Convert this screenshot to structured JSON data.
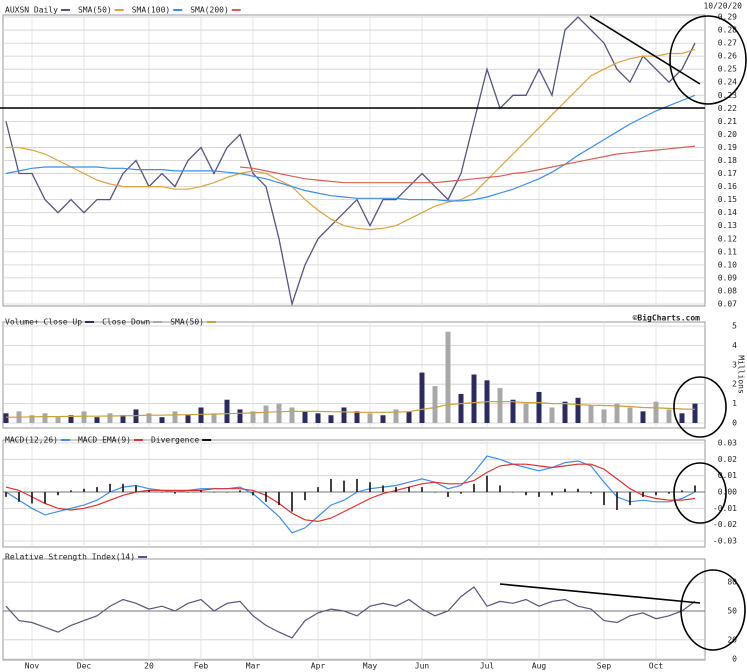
{
  "chart_data": [
    {
      "type": "line",
      "date": "10/20/20",
      "ylim": [
        0.07,
        0.29
      ],
      "grid": true,
      "yticks": [
        0.07,
        0.08,
        0.09,
        {
          "value": 0.1,
          "label": "0.10"
        },
        0.11,
        0.12,
        0.13,
        0.14,
        0.15,
        0.16,
        0.17,
        0.18,
        0.19,
        {
          "value": 0.2,
          "label": "0.20"
        },
        0.21,
        0.22,
        0.23,
        0.24,
        0.25,
        0.26,
        0.27,
        0.28,
        0.29
      ],
      "series": [
        {
          "name": "AUXSN Daily",
          "color": "#55557f",
          "style": "line",
          "values": [
            0.21,
            0.17,
            0.17,
            0.15,
            0.14,
            0.15,
            0.14,
            0.15,
            0.15,
            0.17,
            0.18,
            0.16,
            0.17,
            0.16,
            0.18,
            0.19,
            0.17,
            0.19,
            0.2,
            0.17,
            0.16,
            0.12,
            0.07,
            0.1,
            0.12,
            0.13,
            0.14,
            0.15,
            0.13,
            0.15,
            0.15,
            0.16,
            0.17,
            0.16,
            0.15,
            0.17,
            0.21,
            0.25,
            0.22,
            0.23,
            0.23,
            0.25,
            0.23,
            0.28,
            0.29,
            0.28,
            0.27,
            0.25,
            0.24,
            0.26,
            0.25,
            0.24,
            0.25,
            0.27
          ]
        },
        {
          "name": "SMA(50)",
          "color": "#d9a441",
          "style": "line",
          "values": [
            0.19,
            0.19,
            0.188,
            0.185,
            0.18,
            0.175,
            0.17,
            0.165,
            0.162,
            0.16,
            0.16,
            0.16,
            0.16,
            0.158,
            0.158,
            0.16,
            0.163,
            0.167,
            0.17,
            0.172,
            0.17,
            0.165,
            0.16,
            0.15,
            0.142,
            0.135,
            0.13,
            0.128,
            0.127,
            0.128,
            0.13,
            0.135,
            0.14,
            0.145,
            0.148,
            0.15,
            0.155,
            0.165,
            0.175,
            0.185,
            0.195,
            0.205,
            0.215,
            0.225,
            0.235,
            0.245,
            0.25,
            0.255,
            0.258,
            0.26,
            0.26,
            0.262,
            0.262,
            0.265
          ]
        },
        {
          "name": "SMA(100)",
          "color": "#3d8ee8",
          "style": "line",
          "values": [
            0.17,
            0.172,
            0.174,
            0.175,
            0.175,
            0.175,
            0.175,
            0.175,
            0.174,
            0.174,
            0.173,
            0.173,
            0.173,
            0.172,
            0.172,
            0.172,
            0.172,
            0.171,
            0.17,
            0.168,
            0.166,
            0.163,
            0.16,
            0.157,
            0.155,
            0.153,
            0.152,
            0.151,
            0.151,
            0.151,
            0.151,
            0.15,
            0.15,
            0.15,
            0.149,
            0.149,
            0.15,
            0.152,
            0.155,
            0.158,
            0.162,
            0.166,
            0.171,
            0.177,
            0.184,
            0.19,
            0.196,
            0.202,
            0.208,
            0.213,
            0.218,
            0.222,
            0.226,
            0.23
          ]
        },
        {
          "name": "SMA(200)",
          "color": "#d8605a",
          "style": "line",
          "values": [
            null,
            null,
            null,
            null,
            null,
            null,
            null,
            null,
            null,
            null,
            null,
            null,
            null,
            null,
            null,
            null,
            null,
            null,
            0.175,
            0.174,
            0.172,
            0.17,
            0.168,
            0.166,
            0.165,
            0.164,
            0.163,
            0.163,
            0.163,
            0.163,
            0.163,
            0.163,
            0.163,
            0.163,
            0.164,
            0.165,
            0.166,
            0.167,
            0.168,
            0.17,
            0.171,
            0.173,
            0.175,
            0.177,
            0.179,
            0.181,
            0.183,
            0.185,
            0.186,
            0.187,
            0.188,
            0.189,
            0.19,
            0.191
          ]
        }
      ]
    },
    {
      "type": "bar",
      "credit": "©BigCharts.com",
      "y_label": "Millions",
      "ylim": [
        0,
        5
      ],
      "grid": true,
      "yticks": [
        0,
        1,
        2,
        3,
        4,
        5
      ],
      "series": [
        {
          "name": "Volume+ Close Up",
          "color": "#2b2b5e",
          "style": "bar",
          "values": [
            0.5,
            null,
            null,
            null,
            null,
            0.4,
            null,
            0.3,
            null,
            0.4,
            0.7,
            null,
            0.3,
            null,
            0.4,
            0.8,
            null,
            1.2,
            0.7,
            null,
            null,
            null,
            null,
            0.6,
            0.5,
            0.4,
            0.8,
            0.6,
            null,
            0.4,
            null,
            0.6,
            2.6,
            null,
            null,
            1.5,
            2.5,
            2.2,
            null,
            1.2,
            null,
            1.6,
            null,
            1.1,
            1.3,
            null,
            null,
            null,
            null,
            0.6,
            null,
            null,
            0.5,
            1.0
          ]
        },
        {
          "name": "Close Down",
          "color": "#a8a8a8",
          "style": "bar",
          "values": [
            null,
            0.6,
            0.4,
            0.5,
            0.3,
            null,
            0.6,
            null,
            0.5,
            null,
            null,
            0.5,
            null,
            0.6,
            null,
            null,
            0.5,
            null,
            null,
            0.6,
            0.9,
            1.0,
            0.8,
            null,
            null,
            null,
            null,
            null,
            0.5,
            null,
            0.7,
            null,
            null,
            1.9,
            4.7,
            null,
            null,
            null,
            1.8,
            null,
            1.0,
            null,
            0.8,
            null,
            null,
            0.9,
            0.7,
            1.0,
            0.8,
            null,
            1.1,
            0.7,
            null,
            null
          ]
        },
        {
          "name": "SMA(50)",
          "color": "#c9a13d",
          "style": "line",
          "values": [
            0.3,
            0.3,
            0.32,
            0.33,
            0.33,
            0.34,
            0.35,
            0.35,
            0.36,
            0.37,
            0.38,
            0.4,
            0.4,
            0.42,
            0.43,
            0.45,
            0.46,
            0.48,
            0.5,
            0.52,
            0.55,
            0.58,
            0.6,
            0.6,
            0.6,
            0.58,
            0.57,
            0.55,
            0.55,
            0.55,
            0.56,
            0.58,
            0.7,
            0.8,
            0.95,
            1.0,
            1.05,
            1.1,
            1.1,
            1.1,
            1.05,
            1.05,
            1.0,
            1.0,
            0.95,
            0.92,
            0.9,
            0.88,
            0.85,
            0.8,
            0.78,
            0.75,
            0.72,
            0.7
          ]
        }
      ]
    },
    {
      "type": "line",
      "ylim": [
        -0.03,
        0.03
      ],
      "grid": true,
      "yticks": [
        -0.03,
        -0.02,
        -0.01,
        {
          "value": 0,
          "label": "0.00"
        },
        0.01,
        0.02,
        0.03
      ],
      "series": [
        {
          "name": "MACD(12,26)",
          "color": "#3d8ee8",
          "style": "line",
          "values": [
            0.0,
            -0.005,
            -0.01,
            -0.014,
            -0.012,
            -0.01,
            -0.008,
            -0.005,
            0.0,
            0.003,
            0.004,
            0.002,
            0.001,
            0.0,
            0.001,
            0.002,
            0.002,
            0.002,
            0.003,
            -0.001,
            -0.008,
            -0.015,
            -0.025,
            -0.022,
            -0.015,
            -0.008,
            -0.005,
            0.0,
            0.002,
            0.003,
            0.004,
            0.006,
            0.008,
            0.006,
            0.002,
            0.004,
            0.012,
            0.022,
            0.02,
            0.017,
            0.015,
            0.013,
            0.015,
            0.018,
            0.019,
            0.016,
            0.006,
            -0.003,
            -0.006,
            -0.005,
            -0.006,
            -0.006,
            -0.004,
            0.0
          ]
        },
        {
          "name": "MACD EMA(9)",
          "color": "#e03030",
          "style": "line",
          "values": [
            0.003,
            0.001,
            -0.003,
            -0.007,
            -0.01,
            -0.011,
            -0.01,
            -0.008,
            -0.005,
            -0.002,
            0.0,
            0.001,
            0.001,
            0.001,
            0.001,
            0.001,
            0.002,
            0.002,
            0.002,
            0.001,
            -0.002,
            -0.007,
            -0.013,
            -0.017,
            -0.018,
            -0.016,
            -0.012,
            -0.008,
            -0.004,
            -0.001,
            0.001,
            0.003,
            0.005,
            0.006,
            0.005,
            0.005,
            0.007,
            0.012,
            0.016,
            0.017,
            0.017,
            0.016,
            0.015,
            0.016,
            0.017,
            0.017,
            0.014,
            0.008,
            0.002,
            -0.002,
            -0.004,
            -0.005,
            -0.005,
            -0.004
          ]
        },
        {
          "name": "Divergence",
          "color": "#111111",
          "style": "bar",
          "values": [
            -0.003,
            -0.006,
            -0.007,
            -0.007,
            -0.002,
            0.001,
            0.002,
            0.003,
            0.005,
            0.005,
            0.004,
            0.001,
            0,
            -0.001,
            0,
            0.001,
            0,
            0,
            0.001,
            -0.002,
            -0.006,
            -0.008,
            -0.012,
            -0.005,
            0.003,
            0.008,
            0.007,
            0.008,
            0.006,
            0.004,
            0.003,
            0.003,
            0.003,
            0,
            -0.003,
            -0.001,
            0.005,
            0.01,
            0.004,
            0,
            -0.002,
            -0.003,
            -0.002,
            0.002,
            0.002,
            -0.001,
            -0.008,
            -0.011,
            -0.008,
            -0.003,
            -0.002,
            -0.001,
            0.001,
            0.004
          ]
        }
      ]
    },
    {
      "type": "line",
      "ylim": [
        0,
        100
      ],
      "grid": true,
      "yticks": [
        0,
        20,
        50,
        80
      ],
      "categories": [
        null,
        null,
        "Nov",
        null,
        null,
        null,
        "Dec",
        null,
        null,
        null,
        null,
        "20",
        null,
        null,
        null,
        "Feb",
        null,
        null,
        null,
        "Mar",
        null,
        null,
        null,
        null,
        "Apr",
        null,
        null,
        null,
        "May",
        null,
        null,
        null,
        "Jun",
        null,
        null,
        null,
        null,
        "Jul",
        null,
        null,
        null,
        "Aug",
        null,
        null,
        null,
        null,
        "Sep",
        null,
        null,
        null,
        "Oct",
        null,
        null,
        null
      ],
      "series": [
        {
          "name": "Relative Strength Index(14)",
          "color": "#55557f",
          "style": "line",
          "values": [
            55,
            40,
            38,
            33,
            28,
            35,
            40,
            45,
            55,
            62,
            58,
            52,
            55,
            50,
            58,
            62,
            50,
            58,
            60,
            45,
            35,
            28,
            22,
            40,
            48,
            52,
            50,
            45,
            55,
            58,
            55,
            62,
            52,
            45,
            50,
            65,
            75,
            55,
            60,
            58,
            62,
            55,
            60,
            62,
            55,
            52,
            40,
            38,
            45,
            48,
            42,
            45,
            50,
            60
          ]
        }
      ]
    }
  ]
}
